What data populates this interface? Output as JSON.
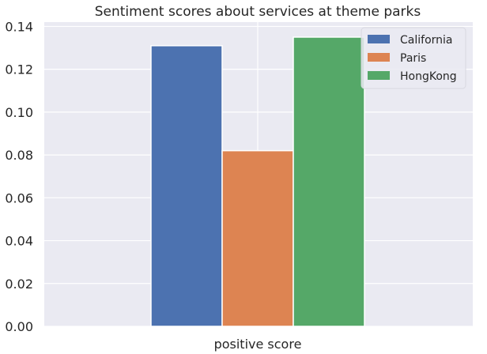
{
  "chart_data": {
    "type": "bar",
    "title": "Sentiment scores about services at theme parks",
    "categories": [
      "positive score"
    ],
    "series": [
      {
        "name": "California",
        "values": [
          0.131
        ],
        "color": "#4c72b0"
      },
      {
        "name": "Paris",
        "values": [
          0.082
        ],
        "color": "#dd8452"
      },
      {
        "name": "HongKong",
        "values": [
          0.135
        ],
        "color": "#55a868"
      }
    ],
    "xlabel": "",
    "ylabel": "",
    "ylim": [
      0,
      0.142
    ],
    "yticks": [
      "0.00",
      "0.02",
      "0.04",
      "0.06",
      "0.08",
      "0.10",
      "0.12",
      "0.14"
    ],
    "grid": true,
    "legend_position": "top-right",
    "background_color": "#eaeaf2",
    "grid_color": "#ffffff"
  }
}
